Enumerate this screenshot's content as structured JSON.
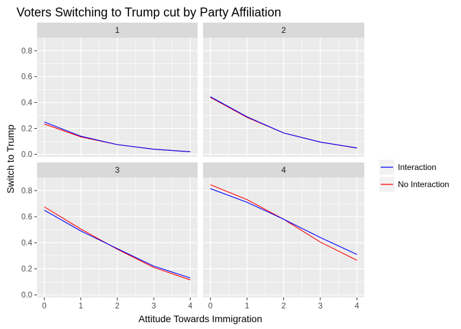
{
  "chart_data": {
    "type": "line",
    "title": "Voters Switching to Trump cut by Party Affiliation",
    "xlabel": "Attitude Towards Immigration",
    "ylabel": "Switch to Trump",
    "x_ticks": [
      "0",
      "1",
      "2",
      "3",
      "4"
    ],
    "y_ticks": [
      "0.0",
      "0.2",
      "0.4",
      "0.6",
      "0.8"
    ],
    "xlim": [
      -0.2,
      4.2
    ],
    "ylim": [
      -0.02,
      0.9
    ],
    "grid": true,
    "legend_position": "right",
    "x": [
      0,
      1,
      2,
      3,
      4
    ],
    "series_styles": [
      {
        "name": "Interaction",
        "color": "#0000ff"
      },
      {
        "name": "No Interaction",
        "color": "#ff0000"
      }
    ],
    "panels": [
      {
        "label": "1",
        "series": [
          {
            "name": "Interaction",
            "values": [
              0.25,
              0.14,
              0.075,
              0.04,
              0.02
            ]
          },
          {
            "name": "No Interaction",
            "values": [
              0.235,
              0.135,
              0.075,
              0.04,
              0.02
            ]
          }
        ]
      },
      {
        "label": "2",
        "series": [
          {
            "name": "Interaction",
            "values": [
              0.445,
              0.29,
              0.165,
              0.095,
              0.05
            ]
          },
          {
            "name": "No Interaction",
            "values": [
              0.44,
              0.285,
              0.165,
              0.095,
              0.048
            ]
          }
        ]
      },
      {
        "label": "3",
        "series": [
          {
            "name": "Interaction",
            "values": [
              0.65,
              0.49,
              0.355,
              0.22,
              0.13
            ]
          },
          {
            "name": "No Interaction",
            "values": [
              0.675,
              0.505,
              0.35,
              0.21,
              0.115
            ]
          }
        ]
      },
      {
        "label": "4",
        "series": [
          {
            "name": "Interaction",
            "values": [
              0.815,
              0.71,
              0.58,
              0.44,
              0.31
            ]
          },
          {
            "name": "No Interaction",
            "values": [
              0.845,
              0.73,
              0.58,
              0.405,
              0.265
            ]
          }
        ]
      }
    ]
  }
}
